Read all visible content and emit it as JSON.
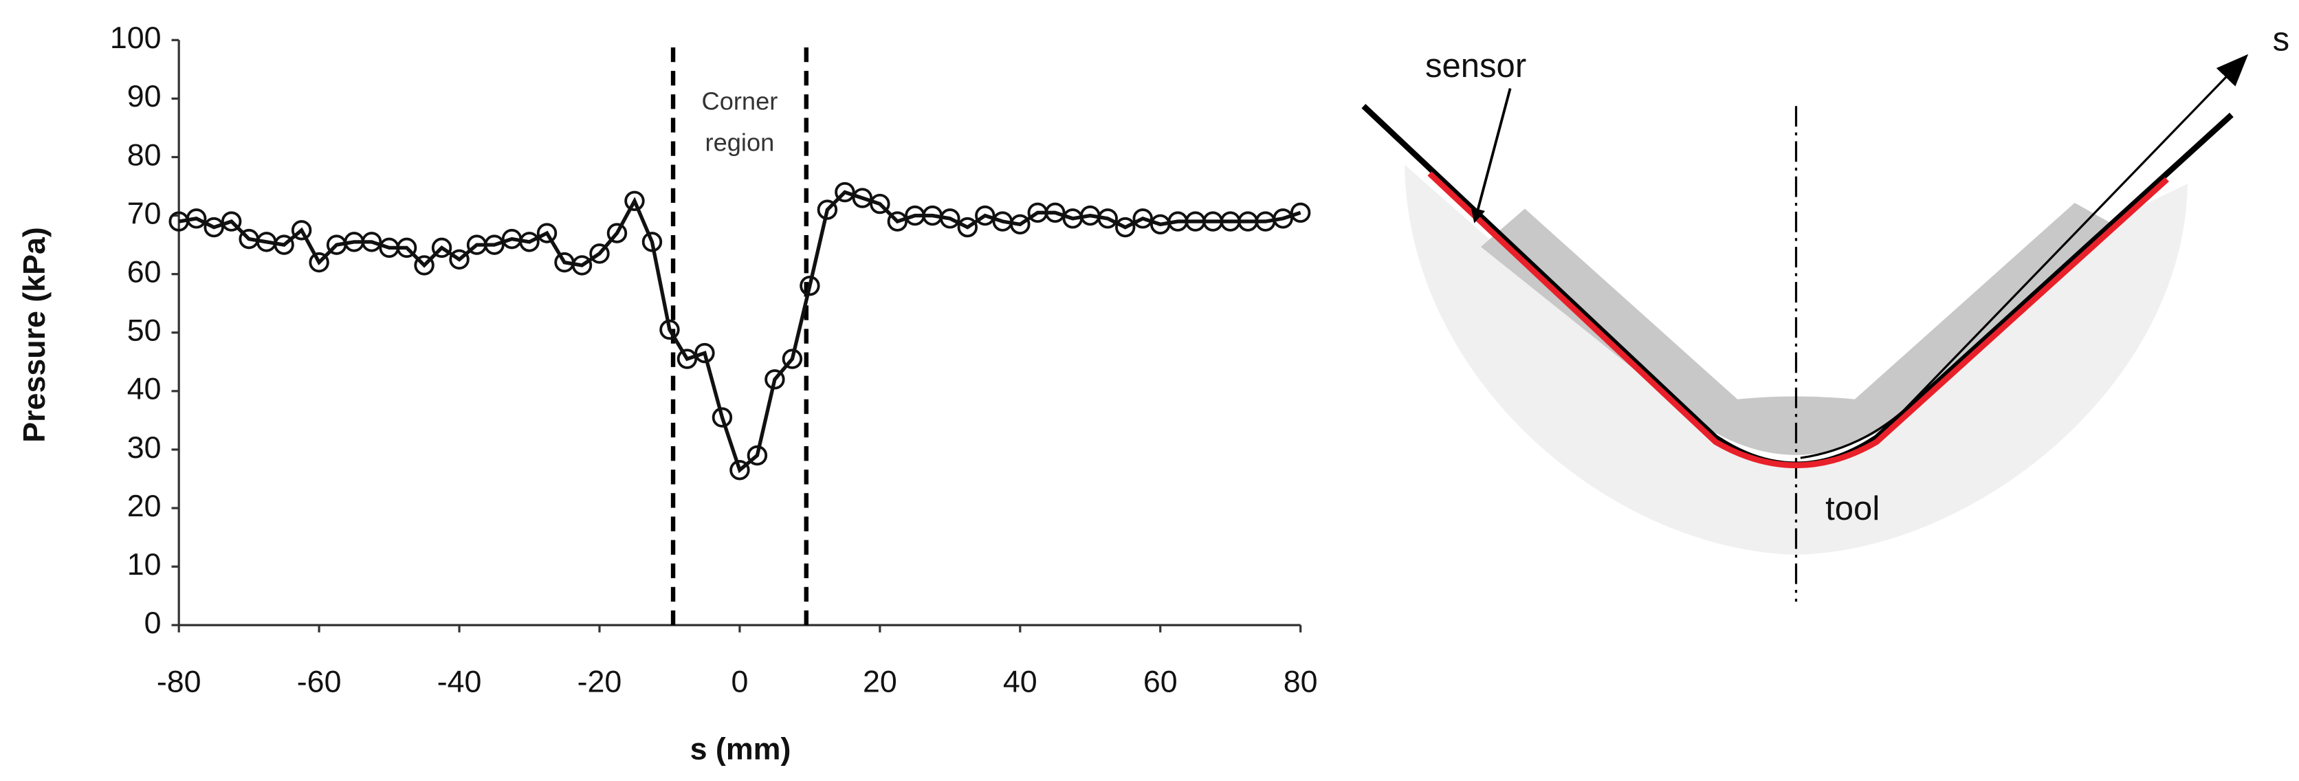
{
  "chart_data": {
    "type": "line",
    "xlabel": "s (mm)",
    "ylabel": "Pressure (kPa)",
    "annotation": [
      "Corner",
      "region"
    ],
    "vlines": [
      -9.5,
      9.5
    ],
    "x": [
      -80,
      -77.5,
      -75,
      -72.5,
      -70,
      -67.5,
      -65,
      -62.5,
      -60,
      -57.5,
      -55,
      -52.5,
      -50,
      -47.5,
      -45,
      -42.5,
      -40,
      -37.5,
      -35,
      -32.5,
      -30,
      -27.5,
      -25,
      -22.5,
      -20,
      -17.5,
      -15,
      -12.5,
      -10,
      -7.5,
      -5,
      -2.5,
      0,
      2.5,
      5,
      7.5,
      10,
      12.5,
      15,
      17.5,
      20,
      22.5,
      25,
      27.5,
      30,
      32.5,
      35,
      37.5,
      40,
      42.5,
      45,
      47.5,
      50,
      52.5,
      55,
      57.5,
      60,
      62.5,
      65,
      67.5,
      70,
      72.5,
      75,
      77.5,
      80
    ],
    "series": [
      {
        "name": "Pressure",
        "color": "#111111",
        "values": [
          69,
          69.5,
          68,
          69,
          66,
          65.5,
          65,
          67.5,
          62,
          65,
          65.5,
          65.5,
          64.5,
          64.5,
          61.5,
          64.5,
          62.5,
          65,
          65,
          66,
          65.5,
          67,
          62,
          61.5,
          63.5,
          67,
          72.5,
          65.5,
          50.5,
          45.5,
          46.5,
          35.5,
          26.5,
          29,
          42,
          45.5,
          58,
          71,
          74,
          73,
          72,
          69,
          70,
          70,
          69.5,
          68,
          70,
          69,
          68.5,
          70.5,
          70.5,
          69.5,
          70,
          69.5,
          68,
          69.5,
          68.5,
          69,
          69,
          69,
          69,
          69,
          69,
          69.5,
          70.5
        ]
      }
    ],
    "xlim": [
      -80,
      80
    ],
    "xticks": [
      -80,
      -60,
      -40,
      -20,
      0,
      20,
      40,
      60,
      80
    ],
    "ylim": [
      0,
      100
    ],
    "yticks": [
      0,
      10,
      20,
      30,
      40,
      50,
      60,
      70,
      80,
      90,
      100
    ]
  },
  "diagram": {
    "labels": {
      "sensor": "sensor",
      "tool": "tool",
      "axis": "s"
    }
  }
}
